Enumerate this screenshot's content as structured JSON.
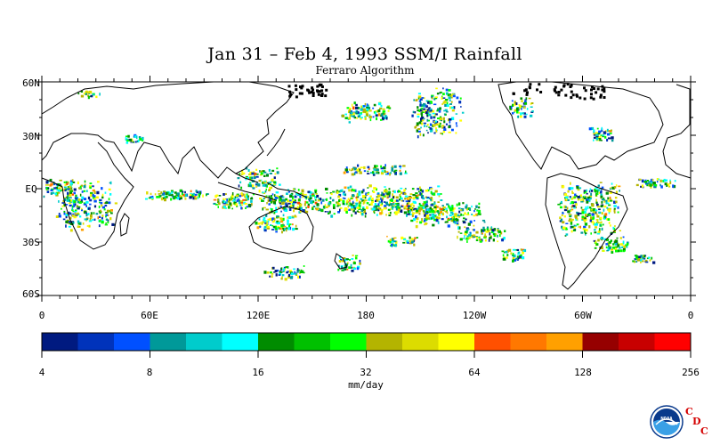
{
  "title": "Jan 31 – Feb 4, 1993 SSM/I Rainfall",
  "subtitle": "Ferraro Algorithm",
  "map": {
    "lat_labels": [
      "60N",
      "30N",
      "EQ",
      "30S",
      "60S"
    ],
    "lon_labels": [
      "0",
      "60E",
      "120E",
      "180",
      "120W",
      "60W",
      "0"
    ]
  },
  "colorbar": {
    "colors": [
      "#001a80",
      "#0033bb",
      "#0050ff",
      "#009999",
      "#00cccc",
      "#00ffff",
      "#008c00",
      "#00c000",
      "#00ff00",
      "#b4b400",
      "#dcdc00",
      "#ffff00",
      "#ff5000",
      "#ff7800",
      "#ffa000",
      "#960000",
      "#c80000",
      "#ff0000"
    ],
    "tick_labels": [
      "4",
      "8",
      "16",
      "32",
      "64",
      "128",
      "256"
    ],
    "unit_label": "mm/day"
  },
  "logo": {
    "noaa_text": "NOAA",
    "cdc_letters": [
      "C",
      "D",
      "C"
    ]
  }
}
